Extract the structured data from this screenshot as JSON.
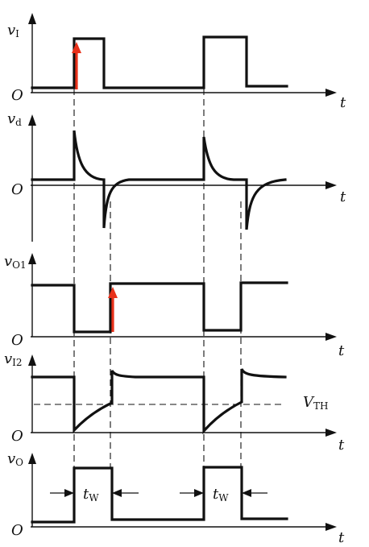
{
  "signals": [
    {
      "name": "v",
      "sub": "I"
    },
    {
      "name": "v",
      "sub": "d"
    },
    {
      "name": "v",
      "sub": "O1"
    },
    {
      "name": "v",
      "sub": "I2"
    },
    {
      "name": "v",
      "sub": "O"
    }
  ],
  "origin": "O",
  "time": "t",
  "threshold": {
    "name": "V",
    "sub": "TH"
  },
  "pulse_width": {
    "name": "t",
    "sub": "W"
  },
  "colors": {
    "trace": "#111111",
    "trigger": "#e8311a"
  }
}
